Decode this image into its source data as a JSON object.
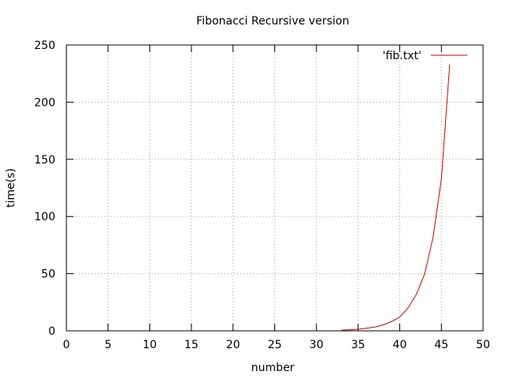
{
  "chart_data": {
    "type": "line",
    "title": "Fibonacci Recursive version",
    "xlabel": "number",
    "ylabel": "time(s)",
    "xlim": [
      0,
      50
    ],
    "ylim": [
      0,
      250
    ],
    "xticks": [
      0,
      5,
      10,
      15,
      20,
      25,
      30,
      35,
      40,
      45,
      50
    ],
    "yticks": [
      0,
      50,
      100,
      150,
      200,
      250
    ],
    "grid": true,
    "legend_position": "top-right",
    "series": [
      {
        "name": "'fib.txt'",
        "color": "#cc0000",
        "x": [
          33,
          34,
          35,
          36,
          37,
          38,
          39,
          40,
          41,
          42,
          43,
          44,
          45,
          46
        ],
        "y": [
          0.6,
          0.9,
          1.4,
          2.2,
          3.3,
          5.2,
          8,
          12,
          20,
          32,
          50,
          82,
          133,
          233
        ]
      }
    ]
  }
}
